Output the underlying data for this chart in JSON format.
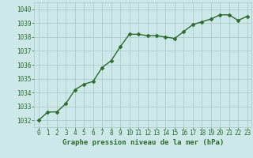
{
  "x": [
    0,
    1,
    2,
    3,
    4,
    5,
    6,
    7,
    8,
    9,
    10,
    11,
    12,
    13,
    14,
    15,
    16,
    17,
    18,
    19,
    20,
    21,
    22,
    23
  ],
  "y": [
    1032.0,
    1032.6,
    1032.6,
    1033.2,
    1034.2,
    1034.6,
    1034.8,
    1035.8,
    1036.3,
    1037.3,
    1038.2,
    1038.2,
    1038.1,
    1038.1,
    1038.0,
    1037.9,
    1038.4,
    1038.9,
    1039.1,
    1039.3,
    1039.6,
    1039.6,
    1039.2,
    1039.5
  ],
  "line_color": "#2d6a2d",
  "marker_color": "#2d6a2d",
  "bg_color": "#cce8e8",
  "grid_color": "#a8c8c8",
  "text_color": "#2d6a2d",
  "xlabel": "Graphe pression niveau de la mer (hPa)",
  "ylim": [
    1031.5,
    1040.5
  ],
  "yticks": [
    1032,
    1033,
    1034,
    1035,
    1036,
    1037,
    1038,
    1039,
    1040
  ],
  "xlim": [
    -0.5,
    23.5
  ],
  "xticks": [
    0,
    1,
    2,
    3,
    4,
    5,
    6,
    7,
    8,
    9,
    10,
    11,
    12,
    13,
    14,
    15,
    16,
    17,
    18,
    19,
    20,
    21,
    22,
    23
  ],
  "tick_fontsize": 5.5,
  "label_fontsize": 6.5,
  "line_width": 1.0,
  "marker_size": 2.5
}
